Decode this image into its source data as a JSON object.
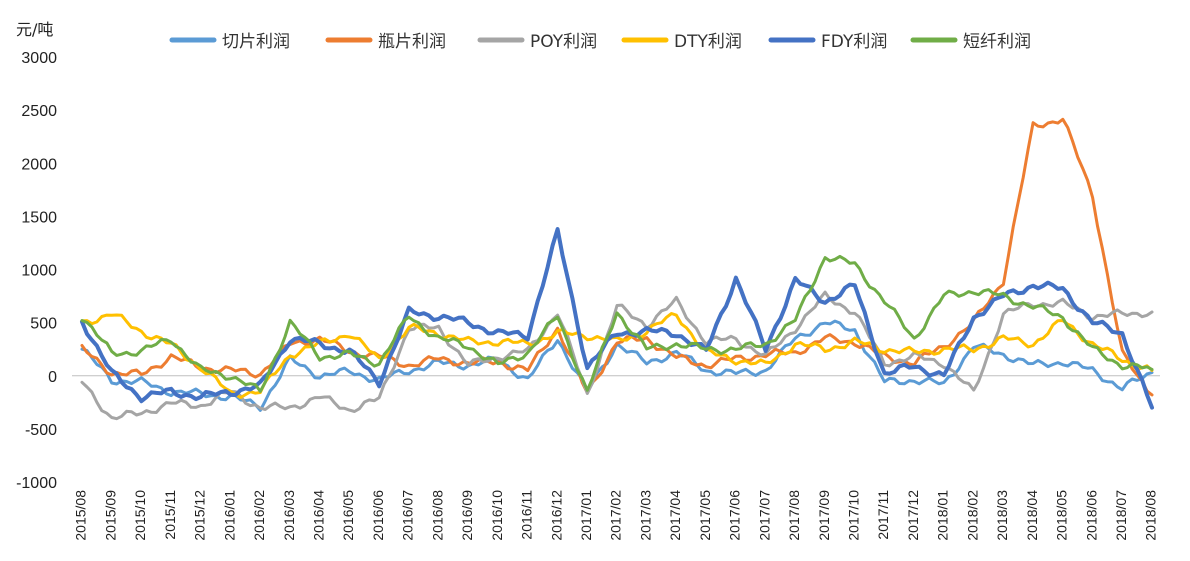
{
  "chart_data": {
    "type": "line",
    "unit_label": "元/吨",
    "ylim": [
      -1000,
      3000
    ],
    "yticks": [
      3000,
      2500,
      2000,
      1500,
      1000,
      500,
      0,
      -500,
      -1000
    ],
    "x_labels": [
      "2015/08",
      "2015/09",
      "2015/10",
      "2015/11",
      "2015/12",
      "2016/01",
      "2016/02",
      "2016/03",
      "2016/04",
      "2016/05",
      "2016/06",
      "2016/07",
      "2016/08",
      "2016/09",
      "2016/10",
      "2016/11",
      "2016/12",
      "2017/01",
      "2017/02",
      "2017/03",
      "2017/04",
      "2017/05",
      "2017/06",
      "2017/07",
      "2017/08",
      "2017/09",
      "2017/10",
      "2017/11",
      "2017/12",
      "2018/01",
      "2018/02",
      "2018/03",
      "2018/04",
      "2018/05",
      "2018/06",
      "2018/07",
      "2018/08"
    ],
    "legend_position": "top",
    "grid": false,
    "series": [
      {
        "name": "切片利润",
        "color": "#5B9BD5",
        "width": 3,
        "values": [
          250,
          -40,
          -60,
          -150,
          -170,
          -200,
          -290,
          150,
          0,
          40,
          -40,
          50,
          120,
          100,
          150,
          -40,
          350,
          -150,
          300,
          120,
          220,
          50,
          20,
          50,
          350,
          500,
          430,
          -60,
          -40,
          -80,
          280,
          200,
          100,
          130,
          50,
          -120,
          30
        ]
      },
      {
        "name": "瓶片利润",
        "color": "#ED7D31",
        "width": 3,
        "values": [
          250,
          30,
          10,
          180,
          80,
          50,
          20,
          300,
          350,
          230,
          180,
          100,
          160,
          120,
          130,
          50,
          450,
          -170,
          320,
          350,
          170,
          100,
          160,
          200,
          220,
          350,
          320,
          180,
          120,
          280,
          500,
          900,
          2350,
          2420,
          1700,
          200,
          -180
        ]
      },
      {
        "name": "POY利润",
        "color": "#A5A5A5",
        "width": 3,
        "values": [
          -60,
          -400,
          -350,
          -260,
          -280,
          -150,
          -300,
          -300,
          -200,
          -320,
          -220,
          450,
          450,
          100,
          180,
          230,
          600,
          -180,
          650,
          480,
          700,
          320,
          350,
          180,
          450,
          750,
          600,
          120,
          180,
          120,
          -160,
          580,
          680,
          680,
          560,
          580,
          600
        ]
      },
      {
        "name": "DTY利润",
        "color": "#FFC000",
        "width": 3,
        "values": [
          500,
          580,
          420,
          290,
          80,
          -170,
          -150,
          200,
          300,
          400,
          150,
          450,
          400,
          320,
          320,
          300,
          400,
          380,
          320,
          420,
          580,
          220,
          150,
          100,
          300,
          250,
          320,
          250,
          220,
          250,
          250,
          350,
          300,
          520,
          300,
          150,
          50
        ]
      },
      {
        "name": "FDY利润",
        "color": "#4472C4",
        "width": 4,
        "values": [
          520,
          20,
          -200,
          -150,
          -200,
          -150,
          -100,
          350,
          300,
          230,
          -60,
          600,
          560,
          500,
          400,
          380,
          1350,
          80,
          400,
          420,
          400,
          230,
          920,
          250,
          900,
          700,
          850,
          20,
          90,
          0,
          550,
          750,
          850,
          820,
          500,
          400,
          -300
        ]
      },
      {
        "name": "短纤利润",
        "color": "#70AD47",
        "width": 3,
        "values": [
          560,
          210,
          230,
          350,
          50,
          0,
          -150,
          500,
          180,
          200,
          120,
          560,
          350,
          280,
          100,
          220,
          560,
          -150,
          600,
          250,
          300,
          250,
          250,
          300,
          520,
          1120,
          1050,
          700,
          350,
          750,
          800,
          750,
          650,
          550,
          250,
          100,
          60
        ]
      }
    ]
  }
}
